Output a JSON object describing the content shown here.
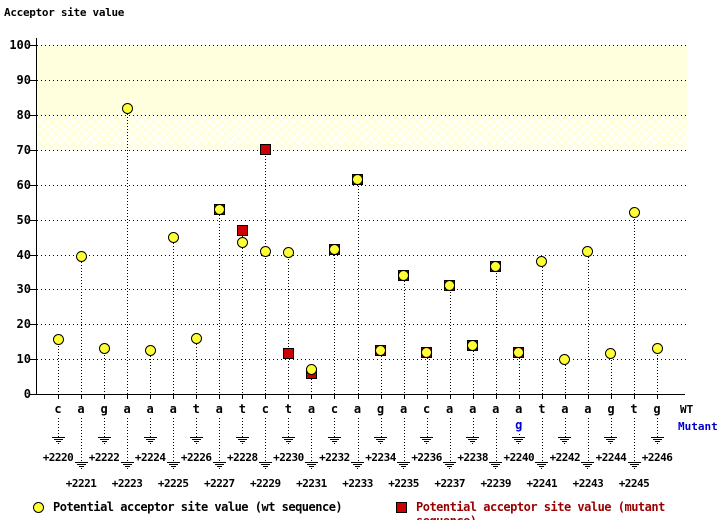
{
  "title": "Acceptor site value",
  "labels": {
    "wt_row": "WT",
    "mutant_row": "Mutant"
  },
  "legend": {
    "wt": "Potential acceptor site value (wt sequence)",
    "mutant": "Potential acceptor site value (mutant sequence)"
  },
  "colors": {
    "wt_marker": "#ffff33",
    "mutant_marker": "#cc0000",
    "mutant_text": "#990000",
    "mutant_base": "#0000cc",
    "band": "#ffffde"
  },
  "chart_data": {
    "type": "scatter",
    "title": "Acceptor site value",
    "ylabel": "Acceptor site value",
    "xlabel": "",
    "ylim": [
      0,
      110
    ],
    "y_ticks": [
      0,
      10,
      20,
      30,
      40,
      50,
      60,
      70,
      80,
      90,
      100
    ],
    "grid": "dotted horizontal",
    "threshold_bands": [
      {
        "from": 80,
        "to": 100,
        "style": "solid"
      },
      {
        "from": 70,
        "to": 80,
        "style": "hatched"
      }
    ],
    "wt_sequence": "cagaaatatctacagacaaaataagtg",
    "mutation": {
      "position": "+2240",
      "wt_base": "a",
      "mutant_base": "g"
    },
    "series": [
      {
        "name": "wt",
        "marker": "circle",
        "color": "#ffff33"
      },
      {
        "name": "mutant",
        "marker": "square",
        "color": "#cc0000"
      }
    ],
    "positions": [
      {
        "pos": "+2220",
        "base": "c",
        "wt": 15.5,
        "mutant": null
      },
      {
        "pos": "+2221",
        "base": "a",
        "wt": 39.5,
        "mutant": null
      },
      {
        "pos": "+2222",
        "base": "g",
        "wt": 13,
        "mutant": null
      },
      {
        "pos": "+2223",
        "base": "a",
        "wt": 82,
        "mutant": null
      },
      {
        "pos": "+2224",
        "base": "a",
        "wt": 12.5,
        "mutant": null
      },
      {
        "pos": "+2225",
        "base": "a",
        "wt": 45,
        "mutant": null
      },
      {
        "pos": "+2226",
        "base": "t",
        "wt": 16,
        "mutant": null
      },
      {
        "pos": "+2227",
        "base": "a",
        "wt": 53,
        "mutant": 53
      },
      {
        "pos": "+2228",
        "base": "t",
        "wt": 43.5,
        "mutant": 47
      },
      {
        "pos": "+2229",
        "base": "c",
        "wt": 41,
        "mutant": 70
      },
      {
        "pos": "+2230",
        "base": "t",
        "wt": 40.5,
        "mutant": 11.5
      },
      {
        "pos": "+2231",
        "base": "a",
        "wt": 7,
        "mutant": 6
      },
      {
        "pos": "+2232",
        "base": "c",
        "wt": 41.5,
        "mutant": 41.5
      },
      {
        "pos": "+2233",
        "base": "a",
        "wt": 61.5,
        "mutant": 61.5
      },
      {
        "pos": "+2234",
        "base": "g",
        "wt": 12.5,
        "mutant": 12.5
      },
      {
        "pos": "+2235",
        "base": "a",
        "wt": 34,
        "mutant": 34
      },
      {
        "pos": "+2236",
        "base": "c",
        "wt": 12,
        "mutant": 12
      },
      {
        "pos": "+2237",
        "base": "a",
        "wt": 31,
        "mutant": 31
      },
      {
        "pos": "+2238",
        "base": "a",
        "wt": 14,
        "mutant": 14
      },
      {
        "pos": "+2239",
        "base": "a",
        "wt": 36.5,
        "mutant": 36.5
      },
      {
        "pos": "+2240",
        "base": "a",
        "mutant_base": "g",
        "wt": 12,
        "mutant": 12
      },
      {
        "pos": "+2241",
        "base": "t",
        "wt": 38,
        "mutant": null
      },
      {
        "pos": "+2242",
        "base": "a",
        "wt": 10,
        "mutant": null
      },
      {
        "pos": "+2243",
        "base": "a",
        "wt": 41,
        "mutant": null
      },
      {
        "pos": "+2244",
        "base": "g",
        "wt": 11.5,
        "mutant": null
      },
      {
        "pos": "+2245",
        "base": "t",
        "wt": 52,
        "mutant": null
      },
      {
        "pos": "+2246",
        "base": "g",
        "wt": 13,
        "mutant": null
      }
    ]
  }
}
